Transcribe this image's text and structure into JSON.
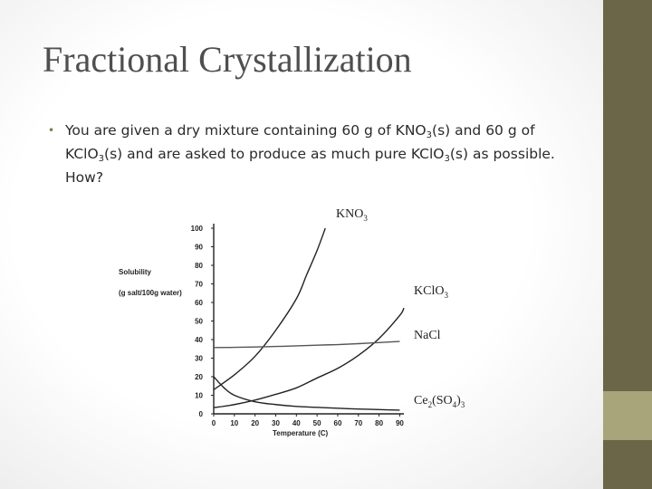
{
  "slide": {
    "title": "Fractional Crystallization",
    "bullet": {
      "marker": "•",
      "t1": "You are given a dry mixture containing 60 g of KNO",
      "s1": "3",
      "t2": "(s) and 60 g of KClO",
      "s2": "3",
      "t3": "(s) and are asked to produce as much pure KClO",
      "s3": "3",
      "t4": "(s) as possible.  How?"
    }
  },
  "colors": {
    "sidebar": "#6c6649",
    "sidebar_accent": "#a8a57b",
    "title": "#4f4f4f",
    "curve_dark": "#222222",
    "curve_light": "#555555"
  },
  "chart_data": {
    "type": "line",
    "ylabel_line1": "Solubility",
    "ylabel_line2": "(g salt/100g water)",
    "xlabel": "Temperature (C)",
    "x_ticks": [
      0,
      10,
      20,
      30,
      40,
      50,
      60,
      70,
      80,
      90
    ],
    "y_ticks": [
      0,
      10,
      20,
      30,
      40,
      50,
      60,
      70,
      80,
      90,
      100
    ],
    "xlim": [
      0,
      92
    ],
    "ylim": [
      0,
      100
    ],
    "grid": false,
    "series": [
      {
        "name": "KNO3",
        "label_main": "KNO",
        "label_sub": "3",
        "label_tail": "",
        "values": [
          [
            0,
            13
          ],
          [
            10,
            21
          ],
          [
            20,
            31
          ],
          [
            30,
            45
          ],
          [
            40,
            62
          ],
          [
            45,
            75
          ],
          [
            50,
            88
          ],
          [
            54,
            100
          ]
        ]
      },
      {
        "name": "KClO3",
        "label_main": "KClO",
        "label_sub": "3",
        "label_tail": "",
        "values": [
          [
            0,
            3.3
          ],
          [
            10,
            5
          ],
          [
            20,
            7.4
          ],
          [
            30,
            10.5
          ],
          [
            40,
            14
          ],
          [
            50,
            19.3
          ],
          [
            60,
            24.5
          ],
          [
            70,
            31.5
          ],
          [
            80,
            40.6
          ],
          [
            90,
            53
          ],
          [
            92,
            57
          ]
        ]
      },
      {
        "name": "NaCl",
        "label_main": "NaCl",
        "label_sub": "",
        "label_tail": "",
        "values": [
          [
            0,
            35.7
          ],
          [
            10,
            35.8
          ],
          [
            20,
            36
          ],
          [
            30,
            36.3
          ],
          [
            40,
            36.6
          ],
          [
            50,
            37
          ],
          [
            60,
            37.3
          ],
          [
            70,
            37.8
          ],
          [
            80,
            38.4
          ],
          [
            90,
            39
          ]
        ]
      },
      {
        "name": "Ce2(SO4)3",
        "label_main": "Ce",
        "label_sub": "2",
        "label_tail": "(SO",
        "label_sub2": "4",
        "label_tail2": ")",
        "label_sub3": "3",
        "values": [
          [
            0,
            20
          ],
          [
            5,
            14
          ],
          [
            10,
            10
          ],
          [
            20,
            6.5
          ],
          [
            30,
            5
          ],
          [
            40,
            4
          ],
          [
            50,
            3.5
          ],
          [
            60,
            3
          ],
          [
            70,
            2.6
          ],
          [
            80,
            2.3
          ],
          [
            90,
            2
          ]
        ]
      }
    ]
  }
}
